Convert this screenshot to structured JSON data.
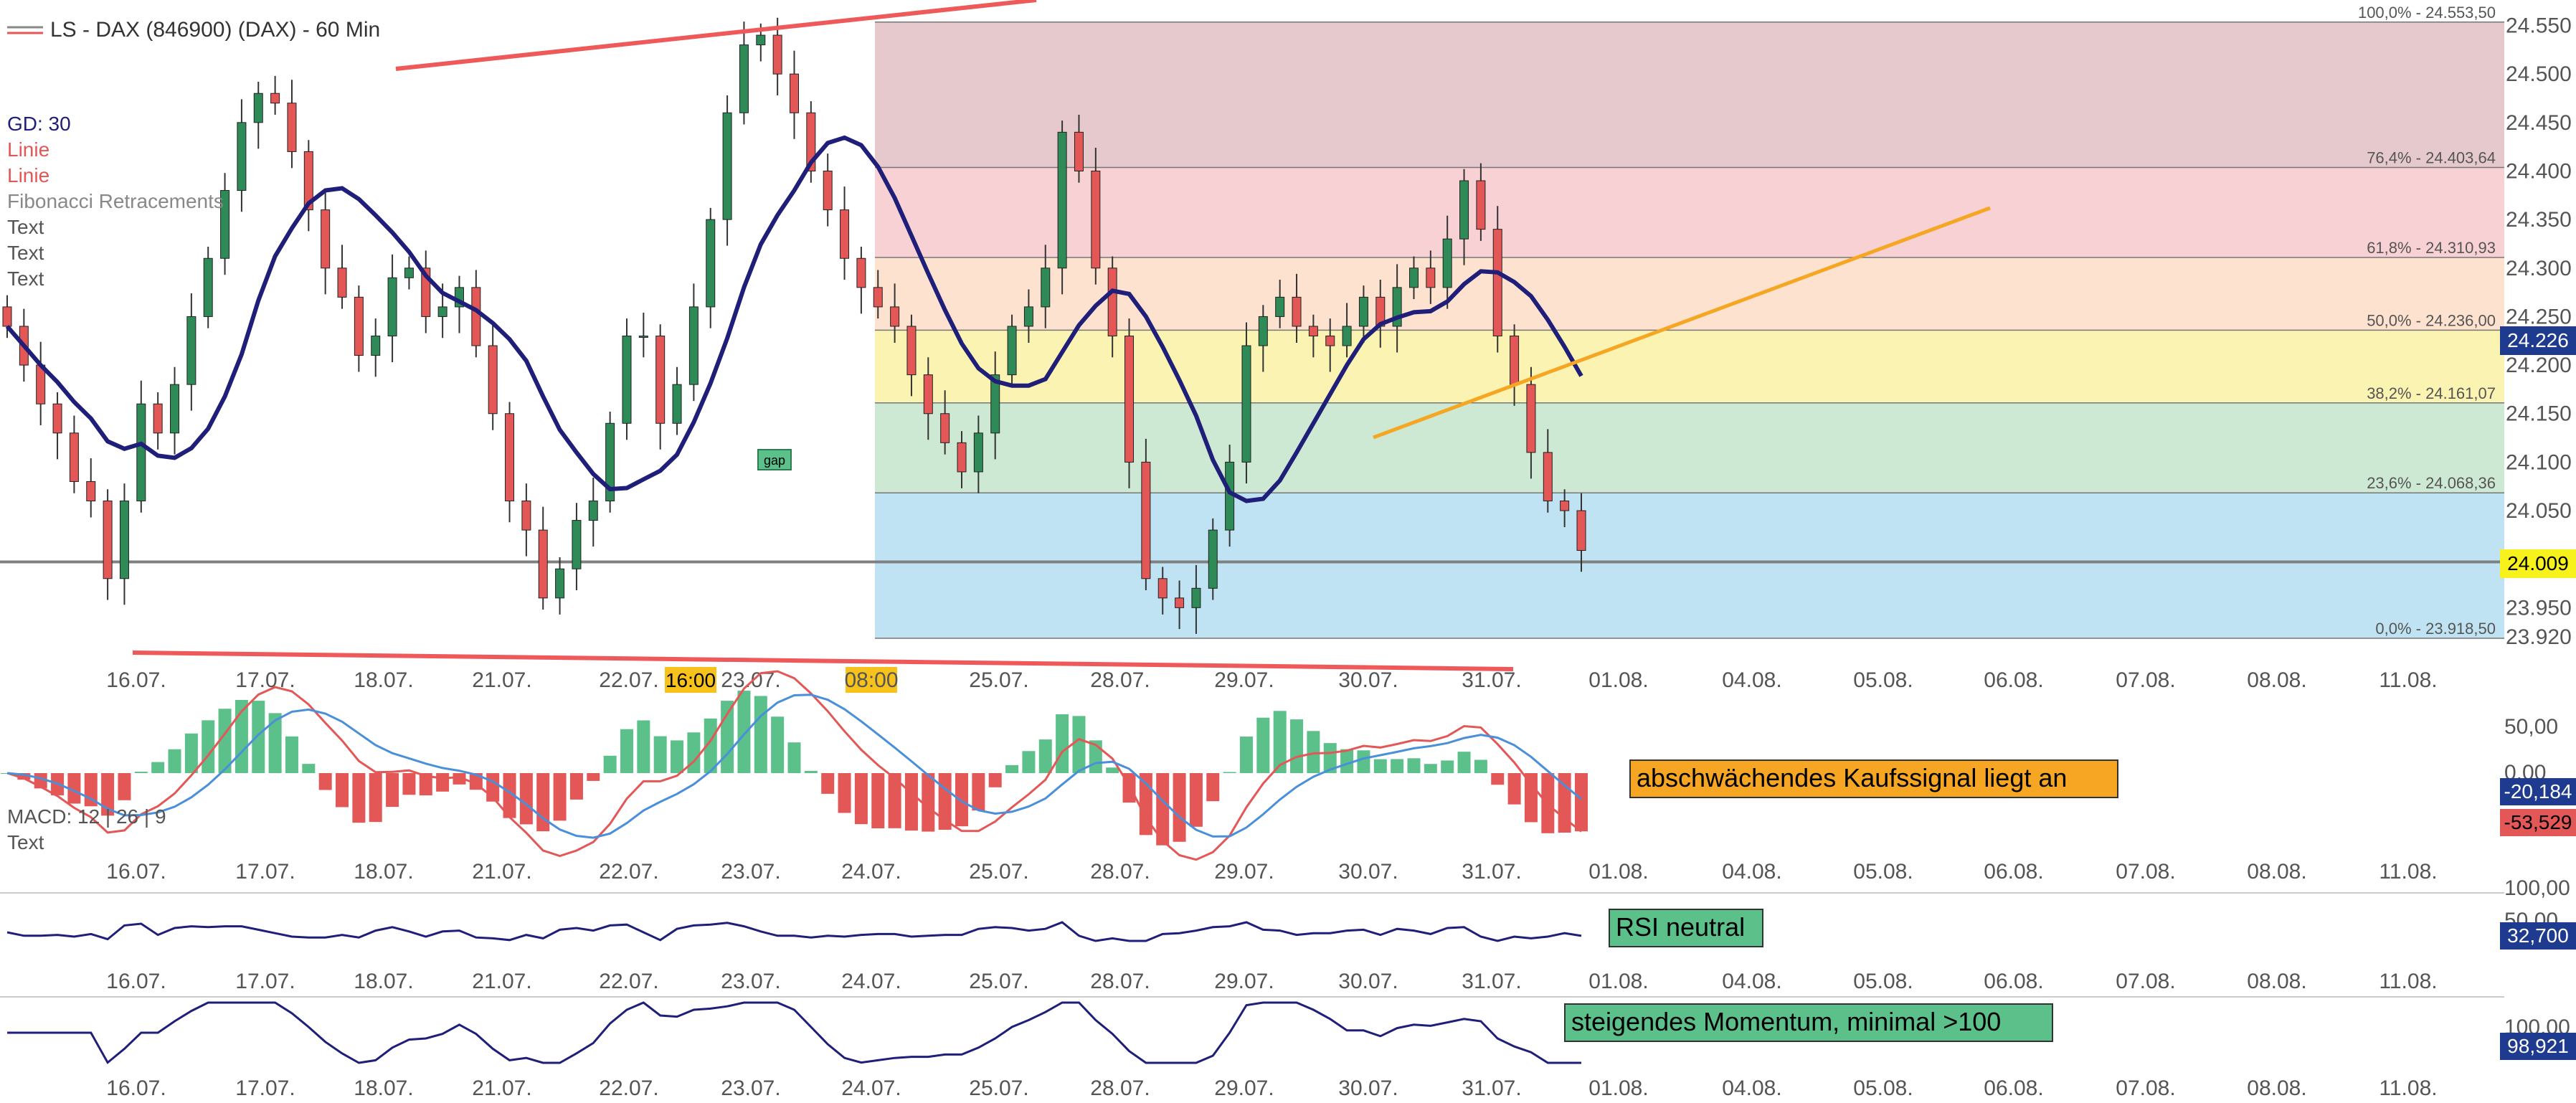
{
  "colors": {
    "up": "#2e8b57",
    "down": "#e45757",
    "neutral": "#888888",
    "gd_line": "#1f1f7a",
    "trendline": "#ee5a5a",
    "trend_orange": "#f5a623",
    "macd_fast": "#e45757",
    "macd_signal": "#4a8fd9",
    "hist_pos": "#5cc08a",
    "hist_neg": "#e45757",
    "fib_0": "#bfe3f3",
    "fib_236": "#cde9d3",
    "fib_382": "#fbf3b1",
    "fib_50": "#fde2cf",
    "fib_618": "#f8d1d4",
    "fib_764": "#e6c9cd",
    "label_orange": "#f6a623",
    "label_green": "#5cc08a",
    "price_blue": "#1f3b8f",
    "price_yellow": "#f7f21c",
    "price_red": "#e45757"
  },
  "header": {
    "title": "LS - DAX (846900) (DAX) - 60 Min"
  },
  "legend": {
    "gd": "GD: 30",
    "linie1": "Linie",
    "linie2": "Linie",
    "fib": "Fibonacci Retracements",
    "text1": "Text",
    "text2": "Text",
    "text3": "Text"
  },
  "x_axis": {
    "labels": [
      "16.07.",
      "17.07.",
      "18.07.",
      "21.07.",
      "22.07.",
      "23.07.",
      "24.07.",
      "25.07.",
      "28.07.",
      "29.07.",
      "30.07.",
      "31.07.",
      "01.08.",
      "04.08.",
      "05.08.",
      "06.08.",
      "07.08.",
      "08.08.",
      "11.08."
    ],
    "main_labels": [
      "16.07.",
      "17.07.",
      "18.07.",
      "21.07.",
      "22.07.",
      "23.07.",
      "08:00",
      "25.07.",
      "28.07.",
      "29.07.",
      "30.07.",
      "31.07.",
      "01.08.",
      "04.08.",
      "05.08.",
      "06.08.",
      "07.08.",
      "08.08.",
      "11.08."
    ],
    "highlight_1600": "16:00",
    "highlight_0800": "08:00"
  },
  "chart_data": [
    {
      "type": "candlestick",
      "title": "LS - DAX (846900) (DAX) - 60 Min",
      "ylim": [
        23900,
        24560
      ],
      "y_ticks": [
        "24.550",
        "24.500",
        "24.450",
        "24.400",
        "24.350",
        "24.300",
        "24.250",
        "24.200",
        "24.150",
        "24.100",
        "24.050",
        "23.950",
        "23.920"
      ],
      "y_tick_values": [
        24550,
        24500,
        24450,
        24400,
        24350,
        24300,
        24250,
        24200,
        24150,
        24100,
        24050,
        23950,
        23920
      ],
      "current_price_label": "24.226",
      "current_price_value": 24226,
      "secondary_price_label": "24.009",
      "secondary_price_value": 24009,
      "support_level": 24009,
      "fibonacci": [
        {
          "label": "100,0% - 24.553,50",
          "value": 24553.5
        },
        {
          "label": "76,4% - 24.403,64",
          "value": 24403.64
        },
        {
          "label": "61,8% - 24.310,93",
          "value": 24310.93
        },
        {
          "label": "50,0% - 24.236,00",
          "value": 24236.0
        },
        {
          "label": "38,2% - 24.161,07",
          "value": 24161.07
        },
        {
          "label": "23,6% - 24.068,36",
          "value": 24068.36
        },
        {
          "label": "0,0% - 23.918,50",
          "value": 23918.5
        }
      ],
      "close_approx": [
        24240,
        24200,
        24160,
        24130,
        24080,
        24060,
        23980,
        24060,
        24160,
        24130,
        24180,
        24250,
        24310,
        24380,
        24450,
        24480,
        24470,
        24420,
        24360,
        24300,
        24270,
        24210,
        24230,
        24290,
        24300,
        24250,
        24260,
        24280,
        24220,
        24150,
        24060,
        24030,
        23960,
        23990,
        24040,
        24060,
        24140,
        24230,
        24230,
        24140,
        24180,
        24260,
        24350,
        24460,
        24530,
        24540,
        24500,
        24460,
        24400,
        24360,
        24310,
        24280,
        24260,
        24240,
        24190,
        24150,
        24120,
        24090,
        24130,
        24190,
        24240,
        24260,
        24300,
        24440,
        24400,
        24300,
        24230,
        24100,
        23980,
        23960,
        23950,
        23970,
        24030,
        24100,
        24220,
        24250,
        24270,
        24240,
        24230,
        24220,
        24240,
        24270,
        24240,
        24280,
        24300,
        24280,
        24330,
        24390,
        24340,
        24230,
        24180,
        24110,
        24060,
        24050,
        24009
      ]
    },
    {
      "type": "bar",
      "title": "MACD: 12 | 26 | 9",
      "series": [
        {
          "name": "MACD",
          "values": [
            -20.184
          ]
        },
        {
          "name": "Signal",
          "values": [
            -53.529
          ]
        }
      ],
      "y_ticks": [
        "50,00",
        "0,00"
      ],
      "value_label_1": "-20,184",
      "value_label_2": "-53,529",
      "annotation": "abschwächendes Kaufssignal liegt an",
      "text_label": "Text"
    },
    {
      "type": "line",
      "y_ticks": [
        "100,00",
        "50,00"
      ],
      "value_label": "32,700",
      "annotation": "RSI neutral"
    },
    {
      "type": "line",
      "y_ticks": [
        "100,00"
      ],
      "value_label": "98,921",
      "annotation": "steigendes Momentum, minimal >100"
    }
  ]
}
